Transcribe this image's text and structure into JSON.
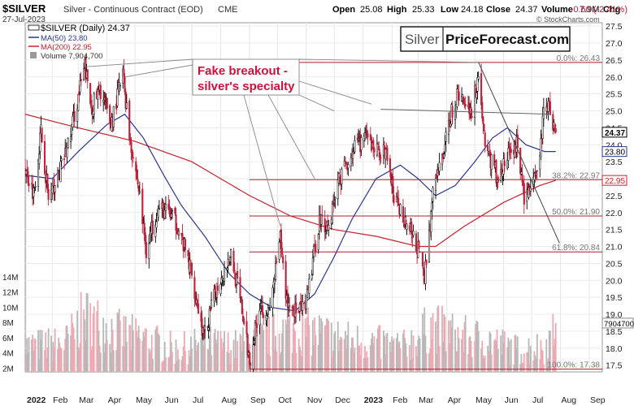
{
  "header": {
    "symbol": "$SILVER",
    "description": "Silver - Continuous Contract (EOD)",
    "exchange": "CME",
    "date": "27-Jul-2023",
    "quote": {
      "open_label": "Open",
      "open": "25.08",
      "high_label": "High",
      "high": "25.33",
      "low_label": "Low",
      "low": "24.18",
      "close_label": "Close",
      "close": "24.37",
      "volume_label": "Volume",
      "volume": "7.9M",
      "chg_label": "Chg",
      "chg": "-0.60 (-2.41%)"
    },
    "watermark": "© StockCharts.com"
  },
  "legend": {
    "price": "$SILVER (Daily) 24.37",
    "ma50": "MA(50) 23.80",
    "ma200": "MA(200) 22.95",
    "volume": "Volume 7,904,700"
  },
  "logo": {
    "left": "Silver",
    "right": "PriceForecast.com"
  },
  "annotation": {
    "line1": "Fake breakout -",
    "line2": "silver's specialty"
  },
  "colors": {
    "up": "#000000",
    "down": "#c0203a",
    "ma50": "#2a3590",
    "ma200": "#c8202a",
    "fib": "#b01c2a",
    "label_bg_price": "#ffffff",
    "annotation": "#d0103c"
  },
  "chart_data": {
    "type": "candlestick",
    "x_axis": {
      "labels": [
        "2022",
        "Feb",
        "Mar",
        "Apr",
        "May",
        "Jun",
        "Jul",
        "Aug",
        "Sep",
        "Oct",
        "Nov",
        "Dec",
        "2023",
        "Feb",
        "Mar",
        "Apr",
        "May",
        "Jun",
        "Jul",
        "Aug",
        "Sep"
      ],
      "range": [
        "2022-01-03",
        "2023-09-15"
      ]
    },
    "y_axis": {
      "ticks": [
        "17.5",
        "18.0",
        "18.5",
        "19.0",
        "19.5",
        "20.0",
        "20.5",
        "21.0",
        "21.5",
        "22.0",
        "22.5",
        "23.0",
        "23.5",
        "24.0",
        "24.5",
        "25.0",
        "25.5",
        "26.0",
        "26.5",
        "27.0",
        "27.5"
      ],
      "range": [
        17.3,
        27.6
      ]
    },
    "volume_axis": {
      "ticks": [
        "2M",
        "4M",
        "6M",
        "8M",
        "10M",
        "12M",
        "14M"
      ],
      "range": [
        0,
        16
      ]
    },
    "price_path": [
      [
        "2022-01-03",
        23.3
      ],
      [
        "2022-01-12",
        22.6
      ],
      [
        "2022-01-20",
        24.4
      ],
      [
        "2022-01-28",
        22.4
      ],
      [
        "2022-02-08",
        23.1
      ],
      [
        "2022-02-18",
        24.0
      ],
      [
        "2022-03-01",
        25.4
      ],
      [
        "2022-03-08",
        26.3
      ],
      [
        "2022-03-15",
        25.1
      ],
      [
        "2022-03-25",
        25.6
      ],
      [
        "2022-04-05",
        24.6
      ],
      [
        "2022-04-18",
        26.1
      ],
      [
        "2022-04-25",
        24.3
      ],
      [
        "2022-05-05",
        22.7
      ],
      [
        "2022-05-13",
        20.9
      ],
      [
        "2022-05-25",
        22.1
      ],
      [
        "2022-06-06",
        22.0
      ],
      [
        "2022-06-16",
        21.6
      ],
      [
        "2022-06-30",
        20.3
      ],
      [
        "2022-07-14",
        18.3
      ],
      [
        "2022-07-28",
        19.8
      ],
      [
        "2022-08-12",
        20.8
      ],
      [
        "2022-08-24",
        19.1
      ],
      [
        "2022-09-01",
        17.6
      ],
      [
        "2022-09-12",
        19.3
      ],
      [
        "2022-09-22",
        19.0
      ],
      [
        "2022-10-04",
        21.2
      ],
      [
        "2022-10-11",
        19.4
      ],
      [
        "2022-10-24",
        19.0
      ],
      [
        "2022-11-01",
        19.3
      ],
      [
        "2022-11-15",
        21.8
      ],
      [
        "2022-11-25",
        21.6
      ],
      [
        "2022-12-05",
        22.9
      ],
      [
        "2022-12-20",
        23.8
      ],
      [
        "2023-01-03",
        24.2
      ],
      [
        "2023-01-13",
        23.9
      ],
      [
        "2023-01-27",
        23.7
      ],
      [
        "2023-02-03",
        22.4
      ],
      [
        "2023-02-15",
        21.8
      ],
      [
        "2023-02-28",
        21.0
      ],
      [
        "2023-03-08",
        20.1
      ],
      [
        "2023-03-17",
        22.5
      ],
      [
        "2023-03-30",
        24.0
      ],
      [
        "2023-04-06",
        25.0
      ],
      [
        "2023-04-14",
        25.5
      ],
      [
        "2023-04-28",
        25.0
      ],
      [
        "2023-05-05",
        26.1
      ],
      [
        "2023-05-12",
        24.0
      ],
      [
        "2023-05-26",
        23.0
      ],
      [
        "2023-06-06",
        23.7
      ],
      [
        "2023-06-15",
        24.0
      ],
      [
        "2023-06-23",
        22.5
      ],
      [
        "2023-06-29",
        22.7
      ],
      [
        "2023-07-07",
        23.0
      ],
      [
        "2023-07-14",
        24.9
      ],
      [
        "2023-07-19",
        25.2
      ],
      [
        "2023-07-27",
        24.37
      ]
    ],
    "ma50_path": [
      [
        "2022-01-03",
        23.1
      ],
      [
        "2022-02-01",
        23.0
      ],
      [
        "2022-03-01",
        23.8
      ],
      [
        "2022-04-01",
        24.6
      ],
      [
        "2022-04-20",
        24.9
      ],
      [
        "2022-05-10",
        24.2
      ],
      [
        "2022-06-01",
        23.1
      ],
      [
        "2022-06-20",
        22.2
      ],
      [
        "2022-07-15",
        21.3
      ],
      [
        "2022-08-10",
        20.2
      ],
      [
        "2022-09-01",
        19.6
      ],
      [
        "2022-09-25",
        19.2
      ],
      [
        "2022-10-20",
        19.1
      ],
      [
        "2022-11-10",
        19.6
      ],
      [
        "2022-12-01",
        20.7
      ],
      [
        "2022-12-20",
        21.8
      ],
      [
        "2023-01-15",
        23.0
      ],
      [
        "2023-02-10",
        23.4
      ],
      [
        "2023-03-01",
        23.0
      ],
      [
        "2023-03-20",
        22.5
      ],
      [
        "2023-04-10",
        22.8
      ],
      [
        "2023-05-01",
        23.5
      ],
      [
        "2023-05-20",
        24.2
      ],
      [
        "2023-06-05",
        24.5
      ],
      [
        "2023-06-25",
        24.0
      ],
      [
        "2023-07-15",
        23.8
      ],
      [
        "2023-07-27",
        23.8
      ]
    ],
    "ma200_path": [
      [
        "2022-01-03",
        24.9
      ],
      [
        "2022-03-01",
        24.5
      ],
      [
        "2022-05-01",
        24.1
      ],
      [
        "2022-07-01",
        23.5
      ],
      [
        "2022-09-01",
        22.5
      ],
      [
        "2022-10-15",
        21.9
      ],
      [
        "2022-12-01",
        21.5
      ],
      [
        "2023-01-15",
        21.3
      ],
      [
        "2023-03-01",
        21.0
      ],
      [
        "2023-03-20",
        21.0
      ],
      [
        "2023-04-20",
        21.6
      ],
      [
        "2023-06-01",
        22.3
      ],
      [
        "2023-07-10",
        22.8
      ],
      [
        "2023-07-27",
        22.95
      ]
    ],
    "volume_profile": [
      [
        "2022-01-03",
        5.5
      ],
      [
        "2022-02-15",
        6.0
      ],
      [
        "2022-03-08",
        10.0
      ],
      [
        "2022-04-15",
        7.5
      ],
      [
        "2022-05-15",
        6.5
      ],
      [
        "2022-06-15",
        5.0
      ],
      [
        "2022-07-15",
        6.0
      ],
      [
        "2022-08-15",
        5.5
      ],
      [
        "2022-09-15",
        6.5
      ],
      [
        "2022-10-10",
        8.0
      ],
      [
        "2022-11-15",
        7.5
      ],
      [
        "2022-12-15",
        6.5
      ],
      [
        "2023-01-15",
        6.0
      ],
      [
        "2023-02-15",
        5.5
      ],
      [
        "2023-03-15",
        8.5
      ],
      [
        "2023-04-15",
        7.0
      ],
      [
        "2023-05-15",
        6.5
      ],
      [
        "2023-06-15",
        5.0
      ],
      [
        "2023-07-15",
        5.5
      ],
      [
        "2023-07-27",
        7.9
      ]
    ],
    "fib_levels": [
      {
        "label": "0.0%: 26.43",
        "value": 26.43
      },
      {
        "label": "38.2%: 22.97",
        "value": 22.97
      },
      {
        "label": "50.0%: 21.90",
        "value": 21.9
      },
      {
        "label": "61.8%: 20.84",
        "value": 20.84
      },
      {
        "label": "100.0%: 17.38",
        "value": 17.38
      }
    ],
    "resistance_line": [
      [
        "2023-01-20",
        25.05
      ],
      [
        "2023-07-22",
        24.9
      ]
    ],
    "trend_line": [
      [
        "2023-05-05",
        26.43
      ],
      [
        "2023-07-31",
        21.1
      ]
    ],
    "price_labels": [
      {
        "label": "24.37",
        "value": 24.37,
        "style": "price"
      },
      {
        "label": "23.80",
        "value": 23.8,
        "style": "ma50"
      },
      {
        "label": "22.95",
        "value": 22.95,
        "style": "ma200"
      }
    ],
    "volume_label": {
      "label": "7904700",
      "value": 7.9047
    },
    "annotation_targets": [
      [
        "2022-10-04",
        21.6
      ],
      [
        "2022-11-10",
        23.0
      ],
      [
        "2022-12-01",
        25.0
      ],
      [
        "2023-01-10",
        25.2
      ],
      [
        "2023-05-05",
        26.43
      ]
    ]
  }
}
